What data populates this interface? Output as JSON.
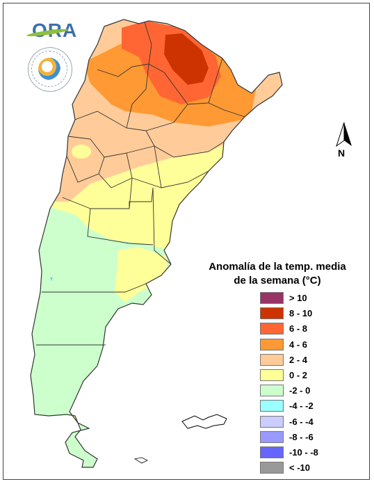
{
  "logo": {
    "text": "ORA",
    "seal_name": "smn-seal"
  },
  "north_arrow": {
    "label": "N"
  },
  "legend": {
    "title_line1": "Anomalía de la temp. media",
    "title_line2": "de la semana (°C)",
    "items": [
      {
        "label": "> 10",
        "color": "#993366"
      },
      {
        "label": "8 - 10",
        "color": "#cc3300"
      },
      {
        "label": "6 - 8",
        "color": "#ff6633"
      },
      {
        "label": "4 - 6",
        "color": "#ff9933"
      },
      {
        "label": "2 - 4",
        "color": "#ffcc99"
      },
      {
        "label": "0 - 2",
        "color": "#ffff99"
      },
      {
        "label": "-2 - 0",
        "color": "#ccffcc"
      },
      {
        "label": "-4 - -2",
        "color": "#99ffff"
      },
      {
        "label": "-6 - -4",
        "color": "#ccccff"
      },
      {
        "label": "-8 - -6",
        "color": "#9999ff"
      },
      {
        "label": "-10 - -8",
        "color": "#6666ff"
      },
      {
        "label": "< -10",
        "color": "#999999"
      }
    ]
  },
  "map_colors": {
    "c8_10": "#cc3300",
    "c6_8": "#ff6633",
    "c4_6": "#ff9933",
    "c2_4": "#ffcc99",
    "c0_2": "#ffff99",
    "cm2_0": "#ccffcc"
  }
}
